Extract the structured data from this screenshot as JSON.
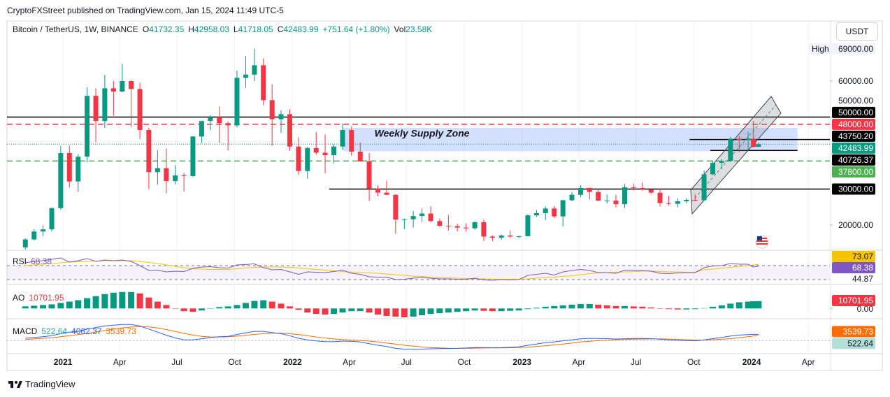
{
  "published": "CryptoFXStreet published on TradingView.com, Jan 15, 2024 11:49 UTC-5",
  "brand": "TradingView",
  "currency": "USDT",
  "header": {
    "symbol": "Bitcoin / TetherUS, 1W, BINANCE",
    "fields": [
      {
        "key": "O",
        "value": "41732.35"
      },
      {
        "key": "H",
        "value": "42958.03"
      },
      {
        "key": "L",
        "value": "41718.05"
      },
      {
        "key": "C",
        "value": "42483.99"
      }
    ],
    "change": "+751.64 (+1.80%)",
    "volume_key": "Vol",
    "volume": "23.58K"
  },
  "chart_data": {
    "type": "candlestick",
    "up_color": "#089981",
    "down_color": "#f23645",
    "xlim": [
      2020.756,
      2024.341
    ],
    "xticks": [
      2021,
      {
        "value": 2021.247,
        "label": "Apr"
      },
      {
        "value": 2021.496,
        "label": "Jul"
      },
      {
        "value": 2021.748,
        "label": "Oct"
      },
      2022,
      {
        "value": 2022.247,
        "label": "Apr"
      },
      {
        "value": 2022.496,
        "label": "Jul"
      },
      {
        "value": 2022.748,
        "label": "Oct"
      },
      2023,
      {
        "value": 2023.247,
        "label": "Apr"
      },
      {
        "value": 2023.496,
        "label": "Jul"
      },
      {
        "value": 2023.748,
        "label": "Oct"
      },
      2024,
      {
        "value": 2024.247,
        "label": "Apr"
      }
    ],
    "ylim": [
      13200,
      76700
    ],
    "yticks": [
      {
        "value": 20000,
        "label": "20000.00"
      },
      {
        "value": 50000,
        "label": "50000.00"
      },
      {
        "value": 60000,
        "label": "60000.00"
      }
    ],
    "high": {
      "label": "High",
      "value": 69000,
      "value_label": "69000.00"
    },
    "levels": [
      {
        "value": 50000,
        "label": "50000.00",
        "color": "#000000",
        "line": "solid"
      },
      {
        "value": 48000,
        "label": "48000.00",
        "color": "#f23645",
        "line": "dashed"
      },
      {
        "value": 43750.2,
        "label": "43750.20",
        "color": "#000000",
        "line": "solid",
        "x_from": 2023.73
      },
      {
        "value": 42483.99,
        "label": "42483.99",
        "color": "#089981",
        "line": "dotted"
      },
      {
        "value": 40726.37,
        "label": "40726.37",
        "color": "#000000",
        "line": "solid",
        "x_from": 2023.82,
        "x_to": 2024.2
      },
      {
        "value": 37800,
        "label": "37800.00",
        "color": "#4caf50",
        "line": "dashed"
      },
      {
        "value": 30000,
        "label": "30000.00",
        "color": "#000000",
        "line": "solid",
        "x_from": 2022.16
      }
    ],
    "zone": {
      "label": "Weekly Supply Zone",
      "xrange": [
        2022.22,
        2024.2
      ],
      "yrange": [
        40500,
        47000
      ],
      "color": "#2962ff"
    },
    "x": [
      2020.836,
      2020.874,
      2020.913,
      2020.951,
      2020.99,
      2021.028,
      2021.066,
      2021.105,
      2021.143,
      2021.182,
      2021.22,
      2021.258,
      2021.297,
      2021.335,
      2021.374,
      2021.412,
      2021.45,
      2021.489,
      2021.527,
      2021.566,
      2021.604,
      2021.642,
      2021.681,
      2021.719,
      2021.758,
      2021.796,
      2021.834,
      2021.873,
      2021.911,
      2021.95,
      2021.988,
      2022.026,
      2022.065,
      2022.103,
      2022.142,
      2022.18,
      2022.218,
      2022.257,
      2022.295,
      2022.334,
      2022.372,
      2022.41,
      2022.449,
      2022.487,
      2022.526,
      2022.564,
      2022.602,
      2022.641,
      2022.679,
      2022.718,
      2022.756,
      2022.794,
      2022.833,
      2022.871,
      2022.91,
      2022.948,
      2022.986,
      2023.025,
      2023.063,
      2023.102,
      2023.14,
      2023.178,
      2023.217,
      2023.255,
      2023.294,
      2023.332,
      2023.37,
      2023.409,
      2023.447,
      2023.486,
      2023.524,
      2023.562,
      2023.601,
      2023.639,
      2023.678,
      2023.716,
      2023.754,
      2023.793,
      2023.831,
      2023.87,
      2023.908,
      2023.946,
      2023.985,
      2024.008,
      2024.03
    ],
    "candles": [
      [
        13800,
        16300,
        13200,
        16000
      ],
      [
        16000,
        18900,
        15700,
        18200
      ],
      [
        18200,
        19900,
        16900,
        18800
      ],
      [
        18800,
        24800,
        18200,
        24700
      ],
      [
        24700,
        41900,
        24200,
        40000
      ],
      [
        40000,
        42000,
        30400,
        32100
      ],
      [
        32100,
        39700,
        29200,
        39000
      ],
      [
        39000,
        58300,
        37400,
        55900
      ],
      [
        55900,
        58000,
        43000,
        48900
      ],
      [
        48900,
        61700,
        47000,
        58000
      ],
      [
        58000,
        60000,
        50400,
        57100
      ],
      [
        57100,
        64800,
        56900,
        60000
      ],
      [
        60000,
        60200,
        47200,
        57800
      ],
      [
        57800,
        59500,
        43900,
        46400
      ],
      [
        46400,
        47000,
        30000,
        34700
      ],
      [
        34700,
        40800,
        31200,
        35800
      ],
      [
        35800,
        41300,
        28800,
        32200
      ],
      [
        32200,
        36600,
        31300,
        33800
      ],
      [
        33800,
        34500,
        29300,
        33600
      ],
      [
        33600,
        44700,
        33400,
        44600
      ],
      [
        44600,
        49000,
        42800,
        48900
      ],
      [
        48900,
        50500,
        46300,
        50000
      ],
      [
        50000,
        52900,
        42800,
        48300
      ],
      [
        48300,
        48800,
        40800,
        47700
      ],
      [
        47700,
        62900,
        47100,
        60900
      ],
      [
        60900,
        67000,
        58100,
        61800
      ],
      [
        61800,
        69000,
        60000,
        64400
      ],
      [
        64400,
        66300,
        53300,
        54700
      ],
      [
        54700,
        59100,
        42000,
        49400
      ],
      [
        49400,
        51900,
        45600,
        50800
      ],
      [
        50800,
        52100,
        40600,
        41800
      ],
      [
        41800,
        44400,
        34000,
        35000
      ],
      [
        35000,
        41700,
        32900,
        41400
      ],
      [
        41400,
        45800,
        39500,
        40100
      ],
      [
        40100,
        45100,
        34400,
        39400
      ],
      [
        39400,
        42400,
        37200,
        41800
      ],
      [
        41800,
        48200,
        40900,
        46400
      ],
      [
        46400,
        47400,
        39300,
        40400
      ],
      [
        40400,
        42900,
        37600,
        37700
      ],
      [
        37700,
        40000,
        26700,
        30100
      ],
      [
        30100,
        31000,
        28000,
        29000
      ],
      [
        29000,
        32300,
        28300,
        28400
      ],
      [
        28400,
        28600,
        17600,
        21500
      ],
      [
        21500,
        21800,
        18800,
        21600
      ],
      [
        21600,
        23900,
        19300,
        22500
      ],
      [
        22500,
        24600,
        20800,
        23200
      ],
      [
        23200,
        25200,
        20800,
        21100
      ],
      [
        21100,
        21800,
        19500,
        19800
      ],
      [
        19800,
        22800,
        18500,
        19700
      ],
      [
        19700,
        20400,
        18200,
        19300
      ],
      [
        19300,
        20500,
        18200,
        19100
      ],
      [
        19100,
        21000,
        18700,
        20800
      ],
      [
        20800,
        21500,
        15600,
        16800
      ],
      [
        16800,
        17100,
        15500,
        16500
      ],
      [
        16500,
        17400,
        15900,
        17100
      ],
      [
        17100,
        18400,
        16400,
        16800
      ],
      [
        16800,
        17000,
        16300,
        16900
      ],
      [
        16900,
        23000,
        16800,
        22700
      ],
      [
        22700,
        24200,
        22300,
        23300
      ],
      [
        23300,
        25200,
        21400,
        24600
      ],
      [
        24600,
        25300,
        21900,
        22400
      ],
      [
        22400,
        27000,
        19600,
        26900
      ],
      [
        26900,
        29200,
        26600,
        28400
      ],
      [
        28400,
        31000,
        27700,
        30300
      ],
      [
        30300,
        30400,
        27100,
        29200
      ],
      [
        29200,
        30000,
        26600,
        26800
      ],
      [
        26800,
        28500,
        26000,
        26800
      ],
      [
        26800,
        28400,
        24900,
        25800
      ],
      [
        25800,
        31400,
        24800,
        30500
      ],
      [
        30500,
        31500,
        29600,
        30300
      ],
      [
        30300,
        31800,
        29500,
        29800
      ],
      [
        29800,
        30000,
        28600,
        29000
      ],
      [
        29000,
        30200,
        25200,
        26100
      ],
      [
        26100,
        28100,
        25400,
        25900
      ],
      [
        25900,
        27400,
        24900,
        26600
      ],
      [
        26600,
        27500,
        26000,
        27000
      ],
      [
        27000,
        28600,
        26600,
        26900
      ],
      [
        26900,
        35200,
        26800,
        34100
      ],
      [
        34100,
        37900,
        33900,
        37300
      ],
      [
        37300,
        38400,
        35600,
        37800
      ],
      [
        37800,
        44500,
        37600,
        44000
      ],
      [
        44000,
        44700,
        40200,
        43700
      ],
      [
        43700,
        45900,
        40800,
        44000
      ],
      [
        44000,
        48900,
        41500,
        41700
      ],
      [
        41732.35,
        42958.03,
        41718.05,
        42483.99
      ]
    ],
    "rsi": {
      "name": "RSI",
      "color": "#7e57c2",
      "ma_color": "#f5c400",
      "ylim": [
        20,
        110
      ],
      "band": [
        30,
        70
      ],
      "extra_label": 44.87,
      "values": [
        78,
        82,
        84,
        88,
        92,
        80,
        84,
        90,
        82,
        86,
        84,
        86,
        82,
        70,
        56,
        57,
        52,
        54,
        53,
        62,
        66,
        67,
        64,
        63,
        72,
        73,
        75,
        64,
        58,
        59,
        52,
        45,
        52,
        51,
        50,
        53,
        57,
        48,
        45,
        38,
        37,
        37,
        30,
        31,
        34,
        36,
        34,
        32,
        32,
        31,
        31,
        34,
        29,
        28,
        30,
        29,
        30,
        42,
        45,
        48,
        43,
        52,
        56,
        59,
        56,
        50,
        50,
        48,
        57,
        57,
        56,
        54,
        48,
        47,
        49,
        50,
        50,
        64,
        69,
        70,
        76,
        74,
        74,
        66,
        68.38
      ],
      "ma": [
        70,
        72,
        74,
        76,
        78,
        80,
        81,
        82,
        83,
        84,
        84,
        84,
        84,
        82,
        79,
        76,
        72,
        68,
        64,
        61,
        60,
        59,
        59,
        59,
        61,
        63,
        65,
        66,
        66,
        66,
        65,
        63,
        61,
        59,
        57,
        55,
        53,
        51,
        50,
        49,
        48,
        46,
        44,
        42,
        40,
        39,
        37,
        36,
        35,
        34,
        33,
        32,
        32,
        31,
        31,
        31,
        31,
        32,
        34,
        36,
        37,
        39,
        41,
        44,
        47,
        49,
        50,
        51,
        52,
        53,
        54,
        54,
        53,
        52,
        52,
        51,
        51,
        58,
        60,
        62,
        65,
        68,
        70,
        72,
        73.07
      ]
    },
    "ao": {
      "name": "AO",
      "up_color": "#089981",
      "down_color": "#f23645",
      "ylim": [
        -14000,
        33000
      ],
      "zero": {
        "value": 0,
        "label": "0.00"
      },
      "values": [
        3000,
        4000,
        5000,
        6000,
        8000,
        10000,
        12000,
        15000,
        18000,
        21000,
        23000,
        24000,
        24000,
        22000,
        16000,
        10000,
        5000,
        0,
        -4000,
        -5000,
        -3000,
        0,
        2000,
        3000,
        5000,
        8000,
        11000,
        12000,
        10000,
        7000,
        3000,
        -2000,
        -6000,
        -8000,
        -9000,
        -8000,
        -6000,
        -4000,
        -4000,
        -6000,
        -9000,
        -11000,
        -12000,
        -13000,
        -12000,
        -10000,
        -8000,
        -7000,
        -6000,
        -5000,
        -4000,
        -3000,
        -3500,
        -4000,
        -4000,
        -3500,
        -3000,
        -1000,
        1000,
        2500,
        3500,
        4500,
        5500,
        6500,
        6500,
        5500,
        4500,
        3500,
        3500,
        3000,
        2500,
        1500,
        0,
        -1000,
        -1500,
        -1500,
        -1000,
        500,
        2500,
        4500,
        7000,
        9000,
        10000,
        10500,
        10701.95
      ]
    },
    "macd": {
      "name": "MACD",
      "color": "#2962ff",
      "signal_color": "#ff6d00",
      "hist_color": "#26a69a",
      "ylim": [
        -8000,
        13300
      ],
      "histogram": 522.64,
      "values": [
        1500,
        2000,
        2500,
        3200,
        4500,
        5500,
        6000,
        7500,
        8500,
        9500,
        10000,
        10500,
        10500,
        9500,
        7500,
        5500,
        3500,
        1800,
        500,
        500,
        1200,
        2000,
        2500,
        2800,
        4000,
        5000,
        6000,
        6000,
        5200,
        4500,
        3200,
        1500,
        500,
        -200,
        -600,
        -700,
        -300,
        -400,
        -900,
        -2000,
        -3000,
        -3800,
        -5000,
        -5500,
        -5600,
        -5500,
        -5300,
        -5200,
        -5100,
        -5000,
        -4800,
        -4400,
        -4500,
        -4600,
        -4500,
        -4300,
        -4000,
        -3000,
        -2200,
        -1300,
        -800,
        -100,
        500,
        1200,
        1500,
        1400,
        1300,
        1000,
        1200,
        1400,
        1400,
        1300,
        900,
        500,
        200,
        0,
        -100,
        500,
        1300,
        2100,
        3000,
        3600,
        3900,
        4050,
        4062.37
      ],
      "signal": [
        800,
        1100,
        1500,
        1900,
        2500,
        3200,
        3900,
        4700,
        5600,
        6500,
        7400,
        8200,
        8800,
        9100,
        8900,
        8200,
        7200,
        6000,
        4700,
        3600,
        2800,
        2400,
        2400,
        2500,
        2900,
        3400,
        4000,
        4500,
        4800,
        4800,
        4500,
        3900,
        3200,
        2400,
        1700,
        1100,
        700,
        400,
        100,
        -300,
        -900,
        -1600,
        -2300,
        -3000,
        -3600,
        -4100,
        -4500,
        -4700,
        -4900,
        -5000,
        -5000,
        -4900,
        -4800,
        -4700,
        -4700,
        -4600,
        -4500,
        -4200,
        -3800,
        -3300,
        -2800,
        -2200,
        -1600,
        -900,
        -400,
        0,
        400,
        600,
        800,
        900,
        1000,
        1100,
        1100,
        1000,
        800,
        600,
        400,
        400,
        600,
        900,
        1300,
        1900,
        2500,
        3000,
        3539.73
      ]
    }
  }
}
